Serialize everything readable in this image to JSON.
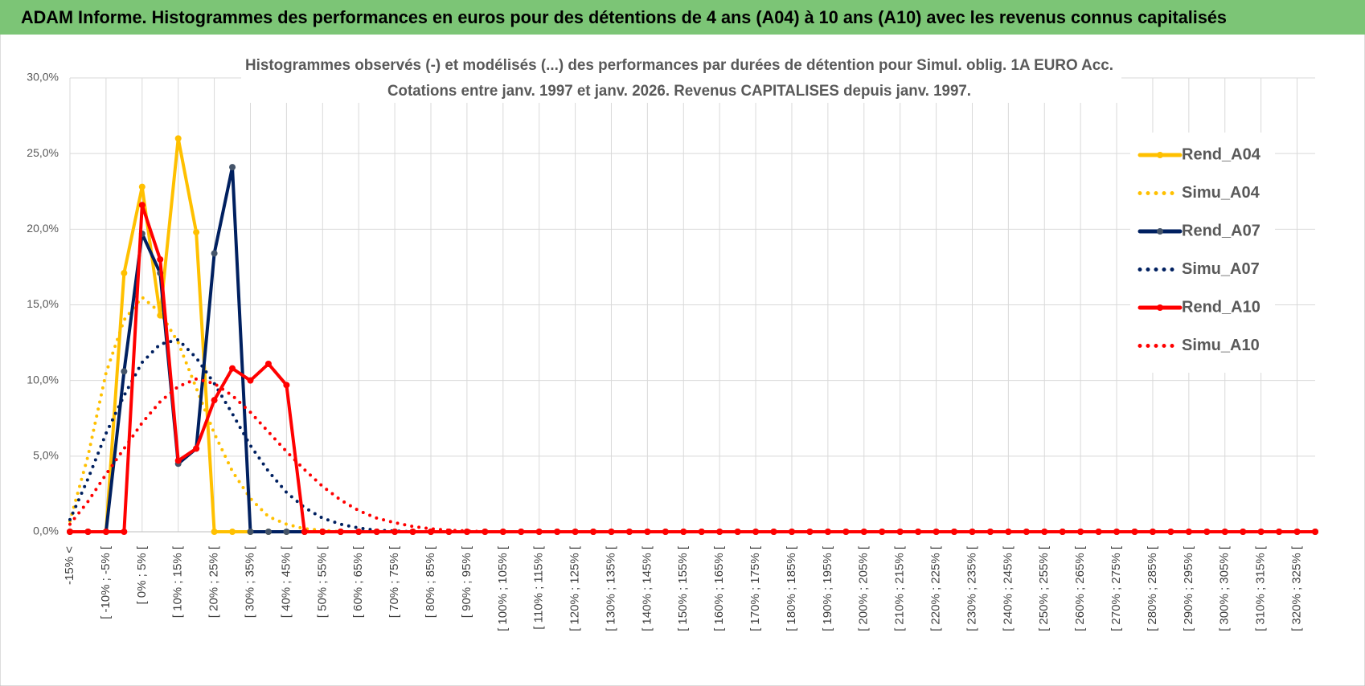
{
  "banner": "ADAM Informe. Histogrammes des performances en euros pour des détentions de 4 ans (A04) à 10 ans (A10) avec les revenus connus capitalisés",
  "chart_data": {
    "type": "line",
    "title": "Histogrammes observés (-) et modélisés (...) des performances par durées de détention pour Simul. oblig. 1A EURO Acc.",
    "subtitle": "Cotations entre janv. 1997 et janv. 2026. Revenus CAPITALISES depuis janv. 1997.",
    "categories": [
      "-15% <",
      null,
      "[ -10% ; -5% [",
      null,
      "[ 0% ; 5% [",
      null,
      "[ 10% ; 15% [",
      null,
      "[ 20% ; 25% [",
      null,
      "[ 30% ; 35% [",
      null,
      "[ 40% ; 45% [",
      null,
      "[ 50% ; 55% [",
      null,
      "[ 60% ; 65% [",
      null,
      "[ 70% ; 75% [",
      null,
      "[ 80% ; 85% [",
      null,
      "[ 90% ; 95% [",
      null,
      "[ 100% ; 105% [",
      null,
      "[ 110% ; 115% [",
      null,
      "[ 120% ; 125% [",
      null,
      "[ 130% ; 135% [",
      null,
      "[ 140% ; 145% [",
      null,
      "[ 150% ; 155% [",
      null,
      "[ 160% ; 165% [",
      null,
      "[ 170% ; 175% [",
      null,
      "[ 180% ; 185% [",
      null,
      "[ 190% ; 195% [",
      null,
      "[ 200% ; 205% [",
      null,
      "[ 210% ; 215% [",
      null,
      "[ 220% ; 225% [",
      null,
      "[ 230% ; 235% [",
      null,
      "[ 240% ; 245% [",
      null,
      "[ 250% ; 255% [",
      null,
      "[ 260% ; 265% [",
      null,
      "[ 270% ; 275% [",
      null,
      "[ 280% ; 285% [",
      null,
      "[ 290% ; 295% [",
      null,
      "[ 300% ; 305% [",
      null,
      "[ 310% ; 315% [",
      null,
      "[ 320% ; 325% [",
      null
    ],
    "series": [
      {
        "name": "Rend_A04",
        "color": "#FFC000",
        "style": "solid",
        "values": [
          0,
          0,
          0,
          17.1,
          22.8,
          14.3,
          26.0,
          19.8,
          0,
          0,
          0,
          0,
          0,
          0,
          0,
          0,
          0,
          0,
          0,
          0,
          0,
          0,
          0,
          0,
          0,
          0,
          0,
          0,
          0,
          0,
          0,
          0,
          0,
          0,
          0,
          0,
          0,
          0,
          0,
          0,
          0,
          0,
          0,
          0,
          0,
          0,
          0,
          0,
          0,
          0,
          0,
          0,
          0,
          0,
          0,
          0,
          0,
          0,
          0,
          0,
          0,
          0,
          0,
          0,
          0,
          0,
          0,
          0,
          0,
          0
        ]
      },
      {
        "name": "Simu_A04",
        "color": "#FFC000",
        "style": "dotted",
        "values": [
          0.7,
          5,
          10.5,
          14,
          15.5,
          14.5,
          12.5,
          9.5,
          6.5,
          4,
          2.2,
          1,
          0.5,
          0.2,
          0.1,
          0,
          0,
          0,
          0,
          0,
          0,
          0,
          0,
          0,
          0,
          0,
          0,
          0,
          0,
          0,
          0,
          0,
          0,
          0,
          0,
          0,
          0,
          0,
          0,
          0,
          0,
          0,
          0,
          0,
          0,
          0,
          0,
          0,
          0,
          0,
          0,
          0,
          0,
          0,
          0,
          0,
          0,
          0,
          0,
          0,
          0,
          0,
          0,
          0,
          0,
          0,
          0,
          0,
          0,
          0
        ]
      },
      {
        "name": "Rend_A07",
        "color": "#002060",
        "style": "solid",
        "values": [
          0,
          0,
          0,
          10.6,
          19.7,
          17.1,
          4.5,
          5.5,
          18.4,
          24.1,
          0,
          0,
          0,
          0,
          0,
          0,
          0,
          0,
          0,
          0,
          0,
          0,
          0,
          0,
          0,
          0,
          0,
          0,
          0,
          0,
          0,
          0,
          0,
          0,
          0,
          0,
          0,
          0,
          0,
          0,
          0,
          0,
          0,
          0,
          0,
          0,
          0,
          0,
          0,
          0,
          0,
          0,
          0,
          0,
          0,
          0,
          0,
          0,
          0,
          0,
          0,
          0,
          0,
          0,
          0,
          0,
          0,
          0,
          0,
          0
        ]
      },
      {
        "name": "Simu_A07",
        "color": "#002060",
        "style": "dotted",
        "values": [
          0.8,
          3.5,
          6.5,
          9,
          11.2,
          12.4,
          12.7,
          11.5,
          9.8,
          7.8,
          5.7,
          4,
          2.6,
          1.6,
          0.9,
          0.5,
          0.25,
          0.1,
          0.05,
          0,
          0,
          0,
          0,
          0,
          0,
          0,
          0,
          0,
          0,
          0,
          0,
          0,
          0,
          0,
          0,
          0,
          0,
          0,
          0,
          0,
          0,
          0,
          0,
          0,
          0,
          0,
          0,
          0,
          0,
          0,
          0,
          0,
          0,
          0,
          0,
          0,
          0,
          0,
          0,
          0,
          0,
          0,
          0,
          0,
          0,
          0,
          0,
          0,
          0,
          0
        ]
      },
      {
        "name": "Rend_A10",
        "color": "#FF0000",
        "style": "solid",
        "values": [
          0,
          0,
          0,
          0,
          21.6,
          18.0,
          4.7,
          5.5,
          8.7,
          10.8,
          10.0,
          11.1,
          9.7,
          0,
          0,
          0,
          0,
          0,
          0,
          0,
          0,
          0,
          0,
          0,
          0,
          0,
          0,
          0,
          0,
          0,
          0,
          0,
          0,
          0,
          0,
          0,
          0,
          0,
          0,
          0,
          0,
          0,
          0,
          0,
          0,
          0,
          0,
          0,
          0,
          0,
          0,
          0,
          0,
          0,
          0,
          0,
          0,
          0,
          0,
          0,
          0,
          0,
          0,
          0,
          0,
          0,
          0,
          0,
          0,
          0
        ]
      },
      {
        "name": "Simu_A10",
        "color": "#FF0000",
        "style": "dotted",
        "values": [
          0.5,
          2,
          3.8,
          5.5,
          7.2,
          8.6,
          9.6,
          10.1,
          9.8,
          9,
          7.9,
          6.6,
          5.3,
          4.1,
          3.0,
          2.1,
          1.4,
          0.9,
          0.6,
          0.35,
          0.2,
          0.1,
          0.05,
          0,
          0,
          0,
          0,
          0,
          0,
          0,
          0,
          0,
          0,
          0,
          0,
          0,
          0,
          0,
          0,
          0,
          0,
          0,
          0,
          0,
          0,
          0,
          0,
          0,
          0,
          0,
          0,
          0,
          0,
          0,
          0,
          0,
          0,
          0,
          0,
          0,
          0,
          0,
          0,
          0,
          0,
          0,
          0,
          0,
          0,
          0
        ]
      }
    ],
    "ylim": [
      0,
      30
    ],
    "yticks": [
      {
        "value": 0,
        "label": "0,0%"
      },
      {
        "value": 5,
        "label": "5,0%"
      },
      {
        "value": 10,
        "label": "10,0%"
      },
      {
        "value": 15,
        "label": "15,0%"
      },
      {
        "value": 20,
        "label": "20,0%"
      },
      {
        "value": 25,
        "label": "25,0%"
      },
      {
        "value": 30,
        "label": "30,0%"
      }
    ],
    "grid": true,
    "legend": "right"
  }
}
